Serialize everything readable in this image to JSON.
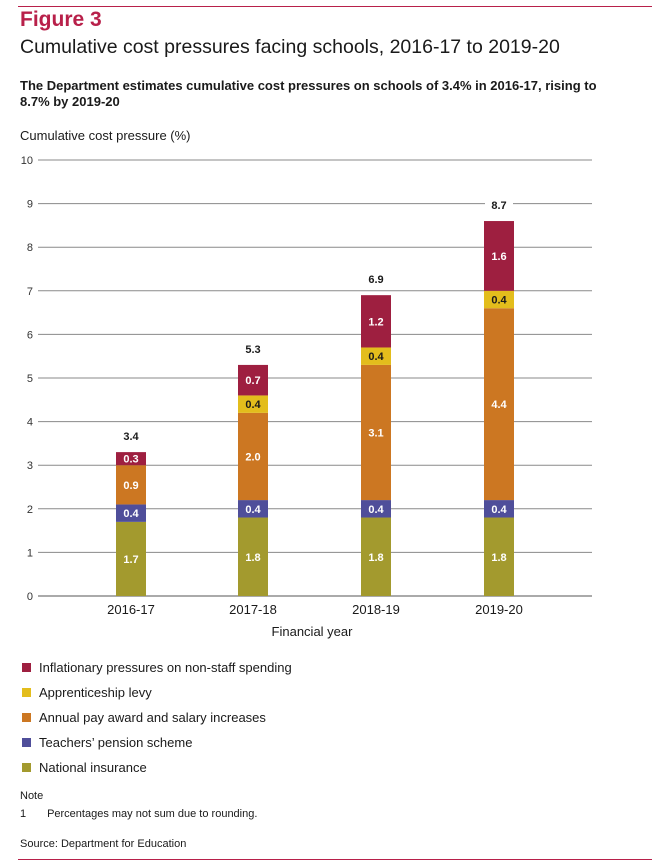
{
  "figure": {
    "label": "Figure 3",
    "title": "Cumulative cost pressures facing schools, 2016-17 to 2019-20",
    "subtitle": "The Department estimates cumulative cost pressures on schools of 3.4% in 2016-17, rising to 8.7% by 2019-20"
  },
  "chart_data": {
    "type": "bar",
    "stacked": true,
    "ylabel": "Cumulative cost pressure (%)",
    "xlabel": "Financial year",
    "ylim": [
      0,
      10
    ],
    "yticks": [
      0,
      1,
      2,
      3,
      4,
      5,
      6,
      7,
      8,
      9,
      10
    ],
    "grid": true,
    "categories": [
      "2016-17",
      "2017-18",
      "2018-19",
      "2019-20"
    ],
    "totals": [
      "3.4",
      "5.3",
      "6.9",
      "8.7"
    ],
    "series": [
      {
        "name": "National insurance",
        "color": "#a39a2e",
        "values": [
          1.7,
          1.8,
          1.8,
          1.8
        ]
      },
      {
        "name": "Teachers’ pension scheme",
        "color": "#4f4e9a",
        "values": [
          0.4,
          0.4,
          0.4,
          0.4
        ]
      },
      {
        "name": "Annual pay award and salary increases",
        "color": "#cc7722",
        "values": [
          0.9,
          2.0,
          3.1,
          4.4
        ]
      },
      {
        "name": "Apprenticeship levy",
        "color": "#e3bd1c",
        "values": [
          0,
          0.4,
          0.4,
          0.4
        ]
      },
      {
        "name": "Inflationary pressures on non-staff spending",
        "color": "#9e1f40",
        "values": [
          0.3,
          0.7,
          1.2,
          1.6
        ]
      }
    ]
  },
  "legend": [
    {
      "label": "Inflationary pressures on non-staff spending",
      "color": "#9e1f40"
    },
    {
      "label": "Apprenticeship levy",
      "color": "#e3bd1c"
    },
    {
      "label": "Annual pay award and salary increases",
      "color": "#cc7722"
    },
    {
      "label": "Teachers’ pension scheme",
      "color": "#4f4e9a"
    },
    {
      "label": "National insurance",
      "color": "#a39a2e"
    }
  ],
  "note": {
    "heading": "Note",
    "items": [
      {
        "num": "1",
        "text": "Percentages may not sum due to rounding."
      }
    ]
  },
  "source": "Source: Department for Education"
}
